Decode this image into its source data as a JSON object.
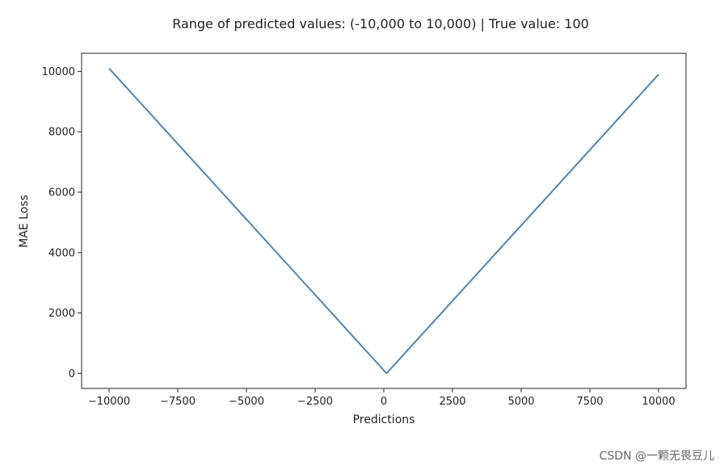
{
  "chart_data": {
    "type": "line",
    "title": "Range of predicted values: (-10,000 to 10,000) | True value: 100",
    "xlabel": "Predictions",
    "ylabel": "MAE Loss",
    "xlim": [
      -11000,
      11000
    ],
    "ylim": [
      -500,
      10600
    ],
    "xticks": [
      -10000,
      -7500,
      -5000,
      -2500,
      0,
      2500,
      5000,
      7500,
      10000
    ],
    "xtick_labels": [
      "−10000",
      "−7500",
      "−5000",
      "−2500",
      "0",
      "2500",
      "5000",
      "7500",
      "10000"
    ],
    "yticks": [
      0,
      2000,
      4000,
      6000,
      8000,
      10000
    ],
    "ytick_labels": [
      "0",
      "2000",
      "4000",
      "6000",
      "8000",
      "10000"
    ],
    "grid": false,
    "series": [
      {
        "color": "#4a86b8",
        "x": [
          -10000,
          100,
          10000
        ],
        "y": [
          10100,
          0,
          9900
        ]
      }
    ]
  },
  "watermark": "CSDN @一颗无畏豆儿"
}
